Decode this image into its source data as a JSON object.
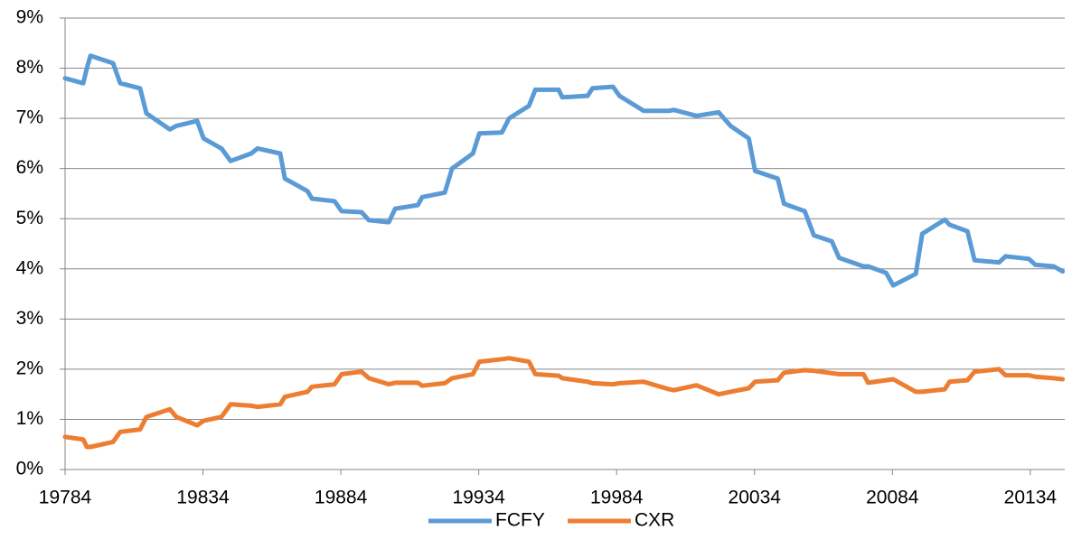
{
  "chart_data": {
    "type": "line",
    "x": [
      1978.75,
      1979.41,
      1979.54,
      1979.67,
      1980.49,
      1980.75,
      1981.47,
      1981.7,
      1982.55,
      1982.78,
      1983.54,
      1983.77,
      1984.42,
      1984.75,
      1985.5,
      1985.73,
      1986.55,
      1986.72,
      1987.54,
      1987.7,
      1988.52,
      1988.78,
      1989.5,
      1989.77,
      1990.49,
      1990.72,
      1991.54,
      1991.7,
      1992.52,
      1992.78,
      1993.54,
      1993.77,
      1994.59,
      1994.85,
      1995.57,
      1995.8,
      1996.65,
      1996.78,
      1997.7,
      1997.87,
      1998.62,
      1998.85,
      1999.73,
      2000.65,
      2000.82,
      2001.64,
      2002.45,
      2002.88,
      2003.54,
      2003.77,
      2004.59,
      2004.82,
      2005.57,
      2005.9,
      2006.55,
      2006.82,
      2007.7,
      2007.87,
      2008.52,
      2008.78,
      2009.6,
      2009.83,
      2010.65,
      2010.82,
      2011.47,
      2011.73,
      2012.62,
      2012.85,
      2013.7,
      2013.93,
      2014.6,
      2014.92
    ],
    "series": [
      {
        "name": "FCFY",
        "color": "#5b9bd5",
        "values": [
          7.8,
          7.7,
          8.0,
          8.25,
          8.1,
          7.7,
          7.6,
          7.1,
          6.78,
          6.85,
          6.95,
          6.6,
          6.4,
          6.15,
          6.3,
          6.4,
          6.3,
          5.8,
          5.55,
          5.4,
          5.35,
          5.15,
          5.13,
          4.97,
          4.93,
          5.2,
          5.27,
          5.43,
          5.52,
          6.0,
          6.3,
          6.7,
          6.72,
          7.0,
          7.25,
          7.57,
          7.57,
          7.42,
          7.45,
          7.6,
          7.63,
          7.45,
          7.15,
          7.15,
          7.17,
          7.05,
          7.12,
          6.85,
          6.6,
          5.95,
          5.8,
          5.3,
          5.15,
          4.67,
          4.55,
          4.22,
          4.05,
          4.05,
          3.92,
          3.67,
          3.9,
          4.7,
          4.98,
          4.88,
          4.75,
          4.17,
          4.13,
          4.25,
          4.2,
          4.08,
          4.05,
          3.95
        ]
      },
      {
        "name": "CXR",
        "color": "#ed7d31",
        "values": [
          0.65,
          0.6,
          0.45,
          0.45,
          0.55,
          0.75,
          0.8,
          1.05,
          1.2,
          1.05,
          0.88,
          0.97,
          1.05,
          1.3,
          1.27,
          1.25,
          1.3,
          1.45,
          1.55,
          1.65,
          1.7,
          1.9,
          1.95,
          1.82,
          1.7,
          1.73,
          1.73,
          1.67,
          1.72,
          1.82,
          1.9,
          2.15,
          2.2,
          2.22,
          2.15,
          1.9,
          1.87,
          1.82,
          1.75,
          1.72,
          1.7,
          1.72,
          1.75,
          1.6,
          1.58,
          1.68,
          1.5,
          1.55,
          1.62,
          1.75,
          1.78,
          1.93,
          1.98,
          1.97,
          1.92,
          1.9,
          1.9,
          1.73,
          1.78,
          1.8,
          1.55,
          1.55,
          1.6,
          1.75,
          1.78,
          1.95,
          2.0,
          1.88,
          1.88,
          1.85,
          1.82,
          1.8
        ]
      }
    ],
    "xlim": [
      1978.75,
      2015.0
    ],
    "xticks": [
      {
        "value": 1978.75,
        "label": "19784"
      },
      {
        "value": 1983.75,
        "label": "19834"
      },
      {
        "value": 1988.75,
        "label": "19884"
      },
      {
        "value": 1993.75,
        "label": "19934"
      },
      {
        "value": 1998.75,
        "label": "19984"
      },
      {
        "value": 2003.75,
        "label": "20034"
      },
      {
        "value": 2008.75,
        "label": "20084"
      },
      {
        "value": 2013.75,
        "label": "20134"
      }
    ],
    "ylim": [
      0,
      9
    ],
    "yticks": [
      {
        "value": 0,
        "label": "0%"
      },
      {
        "value": 1,
        "label": "1%"
      },
      {
        "value": 2,
        "label": "2%"
      },
      {
        "value": 3,
        "label": "3%"
      },
      {
        "value": 4,
        "label": "4%"
      },
      {
        "value": 5,
        "label": "5%"
      },
      {
        "value": 6,
        "label": "6%"
      },
      {
        "value": 7,
        "label": "7%"
      },
      {
        "value": 8,
        "label": "8%"
      },
      {
        "value": 9,
        "label": "9%"
      }
    ],
    "grid": true,
    "legend": "bottom"
  }
}
